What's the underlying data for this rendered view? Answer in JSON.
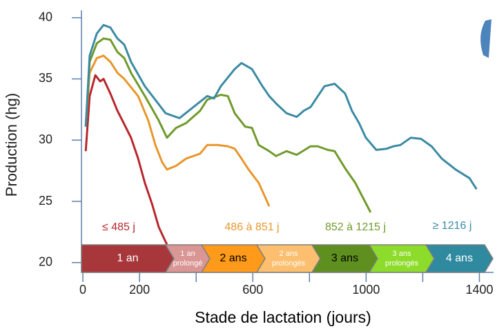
{
  "chart_data": {
    "type": "line",
    "y_label": "Production (hg)",
    "x_label": "Stade de lactation (jours)",
    "xlim": [
      -5,
      1450
    ],
    "ylim": [
      19.2,
      40.6
    ],
    "xticks": [
      0,
      200,
      600,
      1000,
      1400
    ],
    "xminor_ticks": [
      400,
      800,
      1200
    ],
    "yticks": [
      20,
      25,
      30,
      35,
      40
    ],
    "grid": false,
    "series": [
      {
        "name": "≤ 485 j",
        "color": "#b8262b",
        "x": [
          10,
          24,
          44,
          61,
          73,
          97,
          122,
          146,
          170,
          195,
          219,
          244,
          268,
          292,
          297
        ],
        "values": [
          29.1,
          33.6,
          35.3,
          34.8,
          35.0,
          33.8,
          32.4,
          31.3,
          30.2,
          28.5,
          26.5,
          24.8,
          22.9,
          21.7,
          21.5
        ]
      },
      {
        "name": "486 à 851 j",
        "color": "#e8962a",
        "x": [
          10,
          24,
          49,
          73,
          97,
          122,
          146,
          195,
          231,
          256,
          280,
          297,
          329,
          365,
          414,
          439,
          475,
          512,
          536,
          560,
          585,
          621,
          658
        ],
        "values": [
          31.1,
          35.5,
          36.7,
          36.9,
          36.4,
          35.5,
          35.0,
          33.6,
          31.6,
          29.6,
          28.2,
          27.6,
          27.9,
          28.5,
          28.9,
          29.6,
          29.6,
          29.5,
          29.3,
          28.5,
          27.6,
          26.5,
          24.6
        ]
      },
      {
        "name": "852 à 1215 j",
        "color": "#6f9a2a",
        "x": [
          10,
          24,
          49,
          73,
          97,
          122,
          146,
          170,
          219,
          268,
          297,
          329,
          365,
          414,
          439,
          487,
          512,
          536,
          573,
          597,
          621,
          658,
          682,
          719,
          755,
          804,
          829,
          865,
          889,
          926,
          962,
          1016
        ],
        "values": [
          31.1,
          36.4,
          37.9,
          38.3,
          38.2,
          37.2,
          36.7,
          35.5,
          33.6,
          31.6,
          30.2,
          31.0,
          31.4,
          32.4,
          33.3,
          33.7,
          33.6,
          32.2,
          31.1,
          31.0,
          29.6,
          29.1,
          28.7,
          29.1,
          28.8,
          29.5,
          29.5,
          29.2,
          29.1,
          27.7,
          26.5,
          24.1
        ]
      },
      {
        "name": "≥ 1216 j",
        "color": "#3a8aa3",
        "x": [
          10,
          24,
          49,
          73,
          97,
          122,
          146,
          170,
          219,
          292,
          341,
          390,
          439,
          463,
          487,
          536,
          560,
          597,
          634,
          658,
          682,
          719,
          755,
          780,
          804,
          853,
          889,
          926,
          950,
          975,
          999,
          1036,
          1072,
          1097,
          1121,
          1158,
          1194,
          1231,
          1267,
          1316,
          1365,
          1390
        ],
        "values": [
          31.1,
          36.9,
          38.7,
          39.4,
          39.2,
          38.3,
          37.8,
          36.4,
          34.4,
          32.2,
          31.8,
          32.7,
          33.6,
          33.4,
          34.4,
          35.8,
          36.3,
          35.8,
          34.4,
          33.6,
          33.0,
          32.2,
          31.9,
          32.4,
          32.7,
          34.4,
          34.6,
          33.8,
          32.4,
          31.4,
          30.2,
          29.2,
          29.3,
          29.5,
          29.6,
          30.2,
          30.1,
          29.5,
          28.5,
          27.6,
          26.9,
          26.0
        ]
      }
    ],
    "stages": [
      {
        "label": [
          "1 an"
        ],
        "color": "#a8373c",
        "text_color": "#ffffff"
      },
      {
        "label": [
          "1 an",
          "prolongé"
        ],
        "color": "#d99694",
        "text_color": "#ffffff"
      },
      {
        "label": [
          "2 ans"
        ],
        "color": "#ff9a1a",
        "text_color": "#000000"
      },
      {
        "label": [
          "2 ans",
          "prolongés"
        ],
        "color": "#fbbf6f",
        "text_color": "#ffffff"
      },
      {
        "label": [
          "3 ans"
        ],
        "color": "#5f8f1f",
        "text_color": "#000000"
      },
      {
        "label": [
          "3 ans",
          "prolongés"
        ],
        "color": "#8ddb2a",
        "text_color": "#ffffff"
      },
      {
        "label": [
          "4 ans"
        ],
        "color": "#2f8aa0",
        "text_color": "#ffffff"
      }
    ]
  }
}
